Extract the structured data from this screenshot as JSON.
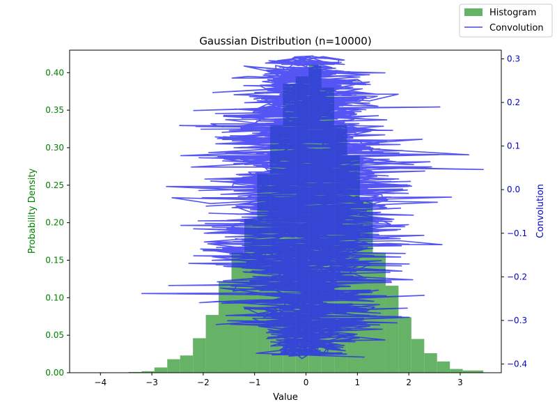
{
  "chart_data": {
    "type": "bar+line",
    "title": "Gaussian Distribution (n=10000)",
    "xlabel": "Value",
    "ylabel_left": "Probability Density",
    "ylabel_right": "Convolution",
    "xlim": [
      -4.6,
      3.8
    ],
    "ylim_left": [
      0,
      0.43
    ],
    "ylim_right": [
      -0.42,
      0.32
    ],
    "x_ticks": [
      -4,
      -3,
      -2,
      -1,
      0,
      1,
      2,
      3
    ],
    "x_tick_labels": [
      "−4",
      "−3",
      "−2",
      "−1",
      "0",
      "1",
      "2",
      "3"
    ],
    "y_left_ticks": [
      0.0,
      0.05,
      0.1,
      0.15,
      0.2,
      0.25,
      0.3,
      0.35,
      0.4
    ],
    "y_left_tick_labels": [
      "0.00",
      "0.05",
      "0.10",
      "0.15",
      "0.20",
      "0.25",
      "0.30",
      "0.35",
      "0.40"
    ],
    "y_right_ticks": [
      -0.4,
      -0.3,
      -0.2,
      -0.1,
      0.0,
      0.1,
      0.2,
      0.3
    ],
    "y_right_tick_labels": [
      "−0.4",
      "−0.3",
      "−0.2",
      "−0.1",
      "0.0",
      "0.1",
      "0.2",
      "0.3"
    ],
    "legend": {
      "placement": "top-right",
      "entries": [
        {
          "label": "Histogram",
          "kind": "patch",
          "color": "#66b266"
        },
        {
          "label": "Convolution",
          "kind": "line",
          "color": "#4444ee"
        }
      ]
    },
    "histogram": {
      "name": "Histogram",
      "color": "#66b266",
      "bin_edges": [
        -3.45,
        -3.2,
        -2.95,
        -2.7,
        -2.45,
        -2.2,
        -1.95,
        -1.7,
        -1.45,
        -1.2,
        -0.95,
        -0.7,
        -0.45,
        -0.2,
        0.05,
        0.3,
        0.55,
        0.8,
        1.05,
        1.3,
        1.55,
        1.8,
        2.05,
        2.3,
        2.55,
        2.8,
        3.05,
        3.45
      ],
      "density": [
        0.001,
        0.002,
        0.007,
        0.018,
        0.023,
        0.046,
        0.077,
        0.122,
        0.16,
        0.205,
        0.265,
        0.33,
        0.385,
        0.395,
        0.41,
        0.38,
        0.33,
        0.29,
        0.23,
        0.16,
        0.116,
        0.074,
        0.045,
        0.026,
        0.015,
        0.005,
        0.003
      ]
    },
    "convolution": {
      "name": "Convolution",
      "color": "#2a2af0",
      "x_range": [
        -4.25,
        3.45
      ],
      "y_range": [
        -0.38,
        0.3
      ],
      "points": 10000
    }
  }
}
